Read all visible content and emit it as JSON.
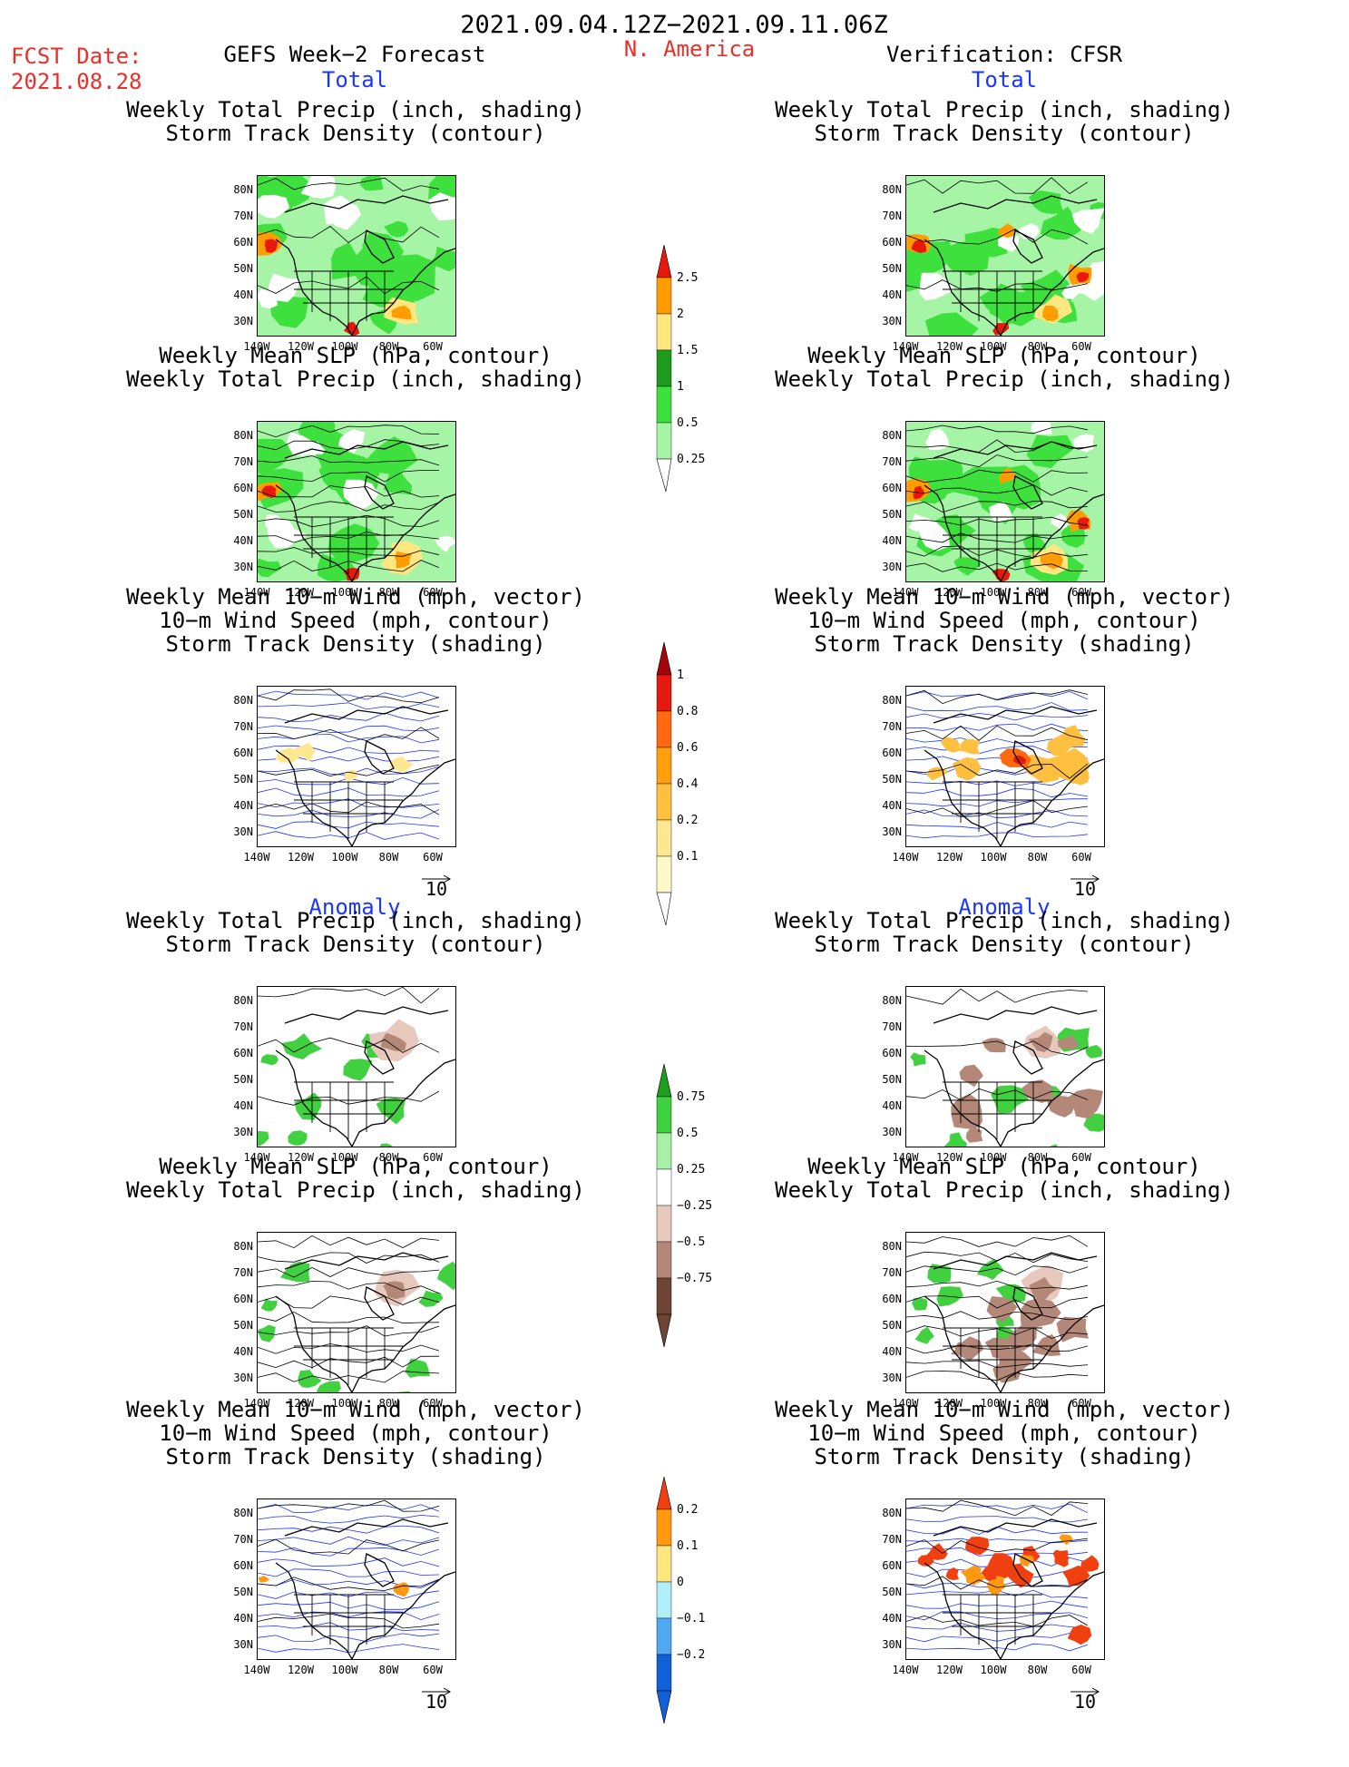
{
  "header": {
    "date_range": "2021.09.04.12Z−2021.09.11.06Z",
    "fcst_label": "FCST Date:",
    "fcst_date": "2021.08.28",
    "model_title": "GEFS Week−2 Forecast",
    "region": "N. America",
    "verification": "Verification: CFSR"
  },
  "sections": {
    "total": "Total",
    "anomaly": "Anomaly"
  },
  "titles": {
    "precip_storm": [
      "Weekly Total Precip (inch, shading)",
      "Storm Track Density (contour)"
    ],
    "slp_precip": [
      "Weekly Mean SLP (hPa, contour)",
      "Weekly Total Precip (inch, shading)"
    ],
    "wind_storm": [
      "Weekly Mean 10−m Wind (mph, vector)",
      "10−m Wind Speed (mph, contour)",
      "Storm Track Density (shading)"
    ]
  },
  "axes": {
    "lat_ticks": [
      "80N",
      "70N",
      "60N",
      "50N",
      "40N",
      "30N"
    ],
    "lon_ticks": [
      "140W",
      "120W",
      "100W",
      "80W",
      "60W"
    ]
  },
  "vector_ref": "10",
  "colorbars": {
    "precip_total": {
      "labels": [
        "2.5",
        "2",
        "1.5",
        "1",
        "0.5",
        "0.25"
      ],
      "colors": [
        "#e8180c",
        "#ff9d00",
        "#ffe680",
        "#1e9a1e",
        "#3ee03e",
        "#a6f5a6"
      ]
    },
    "storm_total": {
      "labels": [
        "1",
        "0.8",
        "0.6",
        "0.4",
        "0.2",
        "0.1"
      ],
      "colors": [
        "#a3060a",
        "#e41a10",
        "#ff6a10",
        "#ff9f10",
        "#ffc040",
        "#ffe890",
        "#fff8c8"
      ]
    },
    "precip_anom": {
      "labels": [
        "0.75",
        "0.5",
        "0.25",
        "−0.25",
        "−0.5",
        "−0.75"
      ],
      "colors": [
        "#1f9d1f",
        "#40d040",
        "#a8f0a8",
        "#ffffff",
        "#e6c8bc",
        "#b48878",
        "#6e4534"
      ]
    },
    "storm_anom": {
      "labels": [
        "0.2",
        "0.1",
        "0",
        "−0.1",
        "−0.2"
      ],
      "colors": [
        "#f04010",
        "#ff9a10",
        "#ffe680",
        "#b0eefa",
        "#50a8f0",
        "#1060d8"
      ]
    }
  }
}
